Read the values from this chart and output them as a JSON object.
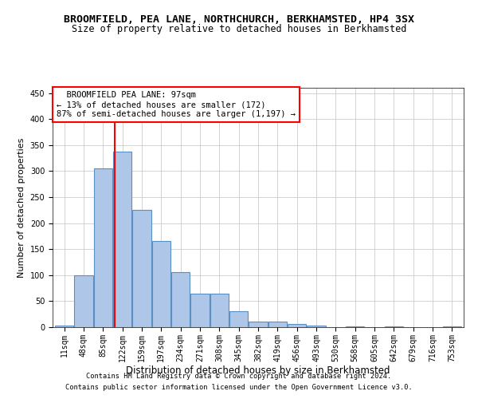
{
  "title": "BROOMFIELD, PEA LANE, NORTHCHURCH, BERKHAMSTED, HP4 3SX",
  "subtitle": "Size of property relative to detached houses in Berkhamsted",
  "xlabel": "Distribution of detached houses by size in Berkhamsted",
  "ylabel": "Number of detached properties",
  "footnote1": "Contains HM Land Registry data © Crown copyright and database right 2024.",
  "footnote2": "Contains public sector information licensed under the Open Government Licence v3.0.",
  "bar_labels": [
    "11sqm",
    "48sqm",
    "85sqm",
    "122sqm",
    "159sqm",
    "197sqm",
    "234sqm",
    "271sqm",
    "308sqm",
    "345sqm",
    "382sqm",
    "419sqm",
    "456sqm",
    "493sqm",
    "530sqm",
    "568sqm",
    "605sqm",
    "642sqm",
    "679sqm",
    "716sqm",
    "753sqm"
  ],
  "bar_values": [
    3,
    99,
    305,
    338,
    225,
    166,
    106,
    65,
    65,
    30,
    10,
    10,
    6,
    3,
    0,
    2,
    0,
    2,
    0,
    0,
    1
  ],
  "bar_color": "#aec6e8",
  "bar_edge_color": "#5a8fc2",
  "bar_edge_width": 0.8,
  "red_line_x": 2.62,
  "annotation_text": "  BROOMFIELD PEA LANE: 97sqm\n← 13% of detached houses are smaller (172)\n87% of semi-detached houses are larger (1,197) →",
  "annotation_box_color": "white",
  "annotation_box_edge": "red",
  "annotation_fontsize": 7.5,
  "ylim": [
    0,
    460
  ],
  "yticks": [
    0,
    50,
    100,
    150,
    200,
    250,
    300,
    350,
    400,
    450
  ],
  "grid_color": "#cccccc",
  "bg_color": "white",
  "title_fontsize": 9.5,
  "subtitle_fontsize": 8.5,
  "xlabel_fontsize": 8.5,
  "ylabel_fontsize": 8,
  "tick_fontsize": 7,
  "footnote_fontsize": 6.2
}
